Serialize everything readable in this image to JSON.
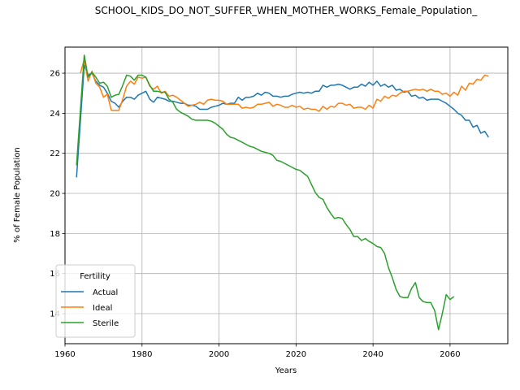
{
  "chart_data": {
    "type": "line",
    "title": "SCHOOL_KIDS_DO_NOT_SUFFER_WHEN_MOTHER_WORKS_Female_Population_",
    "xlabel": "Years",
    "ylabel": "% of Female Population",
    "xlim": [
      1960,
      2075
    ],
    "ylim": [
      12.5,
      27.3
    ],
    "xticks": [
      1960,
      1980,
      2000,
      2020,
      2040,
      2060
    ],
    "yticks": [
      14,
      16,
      18,
      20,
      22,
      24,
      26
    ],
    "grid": true,
    "legend": {
      "title": "Fertility",
      "placement": "lower-left"
    },
    "series": [
      {
        "name": "Actual",
        "color": "#1f77b4",
        "points": [
          [
            1963,
            20.8
          ],
          [
            1965,
            26.4
          ],
          [
            1966,
            25.9
          ],
          [
            1967,
            26.0
          ],
          [
            1968,
            25.6
          ],
          [
            1969,
            25.4
          ],
          [
            1970,
            25.3
          ],
          [
            1971,
            25.0
          ],
          [
            1972,
            24.6
          ],
          [
            1973,
            24.5
          ],
          [
            1974,
            24.3
          ],
          [
            1975,
            24.6
          ],
          [
            1976,
            24.8
          ],
          [
            1977,
            24.8
          ],
          [
            1978,
            24.7
          ],
          [
            1979,
            24.9
          ],
          [
            1980,
            25.0
          ],
          [
            1981,
            25.1
          ],
          [
            1982,
            24.7
          ],
          [
            1983,
            24.55
          ],
          [
            1984,
            24.8
          ],
          [
            1985,
            24.75
          ],
          [
            1986,
            24.7
          ],
          [
            1987,
            24.6
          ],
          [
            1988,
            24.6
          ],
          [
            1989,
            24.55
          ],
          [
            1990,
            24.5
          ],
          [
            1991,
            24.5
          ],
          [
            1992,
            24.4
          ],
          [
            1993,
            24.4
          ],
          [
            1994,
            24.35
          ],
          [
            1995,
            24.2
          ],
          [
            1996,
            24.2
          ],
          [
            1997,
            24.2
          ],
          [
            1998,
            24.3
          ],
          [
            1999,
            24.35
          ],
          [
            2000,
            24.4
          ],
          [
            2001,
            24.5
          ],
          [
            2002,
            24.45
          ],
          [
            2003,
            24.5
          ],
          [
            2004,
            24.5
          ],
          [
            2005,
            24.8
          ],
          [
            2006,
            24.65
          ],
          [
            2007,
            24.8
          ],
          [
            2008,
            24.8
          ],
          [
            2009,
            24.85
          ],
          [
            2010,
            25.0
          ],
          [
            2011,
            24.9
          ],
          [
            2012,
            25.05
          ],
          [
            2013,
            25.0
          ],
          [
            2014,
            24.85
          ],
          [
            2015,
            24.85
          ],
          [
            2016,
            24.8
          ],
          [
            2017,
            24.85
          ],
          [
            2018,
            24.85
          ],
          [
            2019,
            24.95
          ],
          [
            2020,
            25.0
          ],
          [
            2021,
            25.05
          ],
          [
            2022,
            25.0
          ],
          [
            2023,
            25.05
          ],
          [
            2024,
            25.0
          ],
          [
            2025,
            25.1
          ],
          [
            2026,
            25.1
          ],
          [
            2027,
            25.4
          ],
          [
            2028,
            25.3
          ],
          [
            2029,
            25.4
          ],
          [
            2030,
            25.4
          ],
          [
            2031,
            25.45
          ],
          [
            2032,
            25.4
          ],
          [
            2033,
            25.3
          ],
          [
            2034,
            25.2
          ],
          [
            2035,
            25.3
          ],
          [
            2036,
            25.3
          ],
          [
            2037,
            25.45
          ],
          [
            2038,
            25.35
          ],
          [
            2039,
            25.55
          ],
          [
            2040,
            25.4
          ],
          [
            2041,
            25.6
          ],
          [
            2042,
            25.35
          ],
          [
            2043,
            25.45
          ],
          [
            2044,
            25.3
          ],
          [
            2045,
            25.4
          ],
          [
            2046,
            25.15
          ],
          [
            2047,
            25.2
          ],
          [
            2048,
            25.05
          ],
          [
            2049,
            25.1
          ],
          [
            2050,
            24.85
          ],
          [
            2051,
            24.9
          ],
          [
            2052,
            24.75
          ],
          [
            2053,
            24.8
          ],
          [
            2054,
            24.65
          ],
          [
            2055,
            24.7
          ],
          [
            2056,
            24.7
          ],
          [
            2057,
            24.7
          ],
          [
            2058,
            24.6
          ],
          [
            2059,
            24.5
          ],
          [
            2060,
            24.35
          ],
          [
            2061,
            24.2
          ],
          [
            2062,
            24.0
          ],
          [
            2063,
            23.9
          ],
          [
            2064,
            23.65
          ],
          [
            2065,
            23.65
          ],
          [
            2066,
            23.3
          ],
          [
            2067,
            23.4
          ],
          [
            2068,
            23.0
          ],
          [
            2069,
            23.1
          ],
          [
            2070,
            22.8
          ]
        ]
      },
      {
        "name": "Ideal",
        "color": "#ff7f0e",
        "points": [
          [
            1964,
            26.0
          ],
          [
            1965,
            26.7
          ],
          [
            1966,
            25.6
          ],
          [
            1967,
            26.1
          ],
          [
            1968,
            25.5
          ],
          [
            1969,
            25.3
          ],
          [
            1970,
            24.8
          ],
          [
            1971,
            24.95
          ],
          [
            1972,
            24.15
          ],
          [
            1973,
            24.15
          ],
          [
            1974,
            24.15
          ],
          [
            1975,
            24.7
          ],
          [
            1976,
            25.35
          ],
          [
            1977,
            25.6
          ],
          [
            1978,
            25.45
          ],
          [
            1979,
            25.8
          ],
          [
            1980,
            25.75
          ],
          [
            1981,
            25.8
          ],
          [
            1982,
            25.35
          ],
          [
            1983,
            25.2
          ],
          [
            1984,
            25.35
          ],
          [
            1985,
            25.0
          ],
          [
            1986,
            25.1
          ],
          [
            1987,
            24.85
          ],
          [
            1988,
            24.9
          ],
          [
            1989,
            24.8
          ],
          [
            1990,
            24.65
          ],
          [
            1991,
            24.5
          ],
          [
            1992,
            24.35
          ],
          [
            1993,
            24.4
          ],
          [
            1994,
            24.45
          ],
          [
            1995,
            24.55
          ],
          [
            1996,
            24.45
          ],
          [
            1997,
            24.65
          ],
          [
            1998,
            24.7
          ],
          [
            1999,
            24.65
          ],
          [
            2000,
            24.65
          ],
          [
            2001,
            24.6
          ],
          [
            2002,
            24.45
          ],
          [
            2003,
            24.45
          ],
          [
            2004,
            24.45
          ],
          [
            2005,
            24.45
          ],
          [
            2006,
            24.25
          ],
          [
            2007,
            24.3
          ],
          [
            2008,
            24.25
          ],
          [
            2009,
            24.3
          ],
          [
            2010,
            24.45
          ],
          [
            2011,
            24.45
          ],
          [
            2012,
            24.5
          ],
          [
            2013,
            24.55
          ],
          [
            2014,
            24.35
          ],
          [
            2015,
            24.45
          ],
          [
            2016,
            24.4
          ],
          [
            2017,
            24.3
          ],
          [
            2018,
            24.3
          ],
          [
            2019,
            24.4
          ],
          [
            2020,
            24.3
          ],
          [
            2021,
            24.35
          ],
          [
            2022,
            24.2
          ],
          [
            2023,
            24.25
          ],
          [
            2024,
            24.2
          ],
          [
            2025,
            24.2
          ],
          [
            2026,
            24.1
          ],
          [
            2027,
            24.35
          ],
          [
            2028,
            24.2
          ],
          [
            2029,
            24.35
          ],
          [
            2030,
            24.3
          ],
          [
            2031,
            24.5
          ],
          [
            2032,
            24.5
          ],
          [
            2033,
            24.4
          ],
          [
            2034,
            24.45
          ],
          [
            2035,
            24.25
          ],
          [
            2036,
            24.3
          ],
          [
            2037,
            24.3
          ],
          [
            2038,
            24.2
          ],
          [
            2039,
            24.4
          ],
          [
            2040,
            24.25
          ],
          [
            2041,
            24.7
          ],
          [
            2042,
            24.6
          ],
          [
            2043,
            24.85
          ],
          [
            2044,
            24.75
          ],
          [
            2045,
            24.9
          ],
          [
            2046,
            24.85
          ],
          [
            2047,
            25.0
          ],
          [
            2048,
            25.1
          ],
          [
            2049,
            25.1
          ],
          [
            2050,
            25.15
          ],
          [
            2051,
            25.2
          ],
          [
            2052,
            25.15
          ],
          [
            2053,
            25.2
          ],
          [
            2054,
            25.1
          ],
          [
            2055,
            25.2
          ],
          [
            2056,
            25.1
          ],
          [
            2057,
            25.1
          ],
          [
            2058,
            24.95
          ],
          [
            2059,
            25.0
          ],
          [
            2060,
            24.85
          ],
          [
            2061,
            25.05
          ],
          [
            2062,
            24.9
          ],
          [
            2063,
            25.35
          ],
          [
            2064,
            25.15
          ],
          [
            2065,
            25.5
          ],
          [
            2066,
            25.45
          ],
          [
            2067,
            25.7
          ],
          [
            2068,
            25.65
          ],
          [
            2069,
            25.9
          ],
          [
            2070,
            25.85
          ]
        ]
      },
      {
        "name": "Sterile",
        "color": "#2ca02c",
        "points": [
          [
            1963,
            21.4
          ],
          [
            1965,
            26.9
          ],
          [
            1966,
            25.8
          ],
          [
            1967,
            26.05
          ],
          [
            1968,
            25.8
          ],
          [
            1969,
            25.5
          ],
          [
            1970,
            25.55
          ],
          [
            1971,
            25.35
          ],
          [
            1972,
            24.8
          ],
          [
            1973,
            24.9
          ],
          [
            1974,
            24.95
          ],
          [
            1975,
            25.4
          ],
          [
            1976,
            25.9
          ],
          [
            1977,
            25.85
          ],
          [
            1978,
            25.65
          ],
          [
            1979,
            25.9
          ],
          [
            1980,
            25.9
          ],
          [
            1981,
            25.8
          ],
          [
            1982,
            25.4
          ],
          [
            1983,
            25.1
          ],
          [
            1984,
            25.1
          ],
          [
            1985,
            25.05
          ],
          [
            1986,
            25.05
          ],
          [
            1987,
            24.7
          ],
          [
            1988,
            24.55
          ],
          [
            1989,
            24.2
          ],
          [
            1990,
            24.05
          ],
          [
            1991,
            23.95
          ],
          [
            1992,
            23.85
          ],
          [
            1993,
            23.7
          ],
          [
            1994,
            23.65
          ],
          [
            1995,
            23.65
          ],
          [
            1996,
            23.65
          ],
          [
            1997,
            23.65
          ],
          [
            1998,
            23.6
          ],
          [
            1999,
            23.5
          ],
          [
            2000,
            23.35
          ],
          [
            2001,
            23.2
          ],
          [
            2002,
            22.95
          ],
          [
            2003,
            22.8
          ],
          [
            2004,
            22.75
          ],
          [
            2005,
            22.65
          ],
          [
            2006,
            22.55
          ],
          [
            2007,
            22.45
          ],
          [
            2008,
            22.35
          ],
          [
            2009,
            22.3
          ],
          [
            2010,
            22.2
          ],
          [
            2011,
            22.1
          ],
          [
            2012,
            22.05
          ],
          [
            2013,
            22.0
          ],
          [
            2014,
            21.9
          ],
          [
            2015,
            21.65
          ],
          [
            2016,
            21.6
          ],
          [
            2017,
            21.5
          ],
          [
            2018,
            21.4
          ],
          [
            2019,
            21.3
          ],
          [
            2020,
            21.2
          ],
          [
            2021,
            21.15
          ],
          [
            2022,
            21.0
          ],
          [
            2023,
            20.85
          ],
          [
            2024,
            20.45
          ],
          [
            2025,
            20.05
          ],
          [
            2026,
            19.8
          ],
          [
            2027,
            19.7
          ],
          [
            2028,
            19.3
          ],
          [
            2029,
            19.0
          ],
          [
            2030,
            18.75
          ],
          [
            2031,
            18.8
          ],
          [
            2032,
            18.75
          ],
          [
            2033,
            18.45
          ],
          [
            2034,
            18.2
          ],
          [
            2035,
            17.85
          ],
          [
            2036,
            17.85
          ],
          [
            2037,
            17.65
          ],
          [
            2038,
            17.75
          ],
          [
            2039,
            17.6
          ],
          [
            2040,
            17.5
          ],
          [
            2041,
            17.35
          ],
          [
            2042,
            17.3
          ],
          [
            2043,
            17.0
          ],
          [
            2044,
            16.3
          ],
          [
            2045,
            15.8
          ],
          [
            2046,
            15.2
          ],
          [
            2047,
            14.85
          ],
          [
            2048,
            14.8
          ],
          [
            2049,
            14.8
          ],
          [
            2050,
            15.25
          ],
          [
            2051,
            15.55
          ],
          [
            2052,
            14.8
          ],
          [
            2053,
            14.6
          ],
          [
            2054,
            14.55
          ],
          [
            2055,
            14.55
          ],
          [
            2056,
            14.15
          ],
          [
            2057,
            13.2
          ],
          [
            2058,
            14.0
          ],
          [
            2059,
            14.95
          ],
          [
            2060,
            14.7
          ],
          [
            2061,
            14.85
          ]
        ]
      }
    ]
  }
}
